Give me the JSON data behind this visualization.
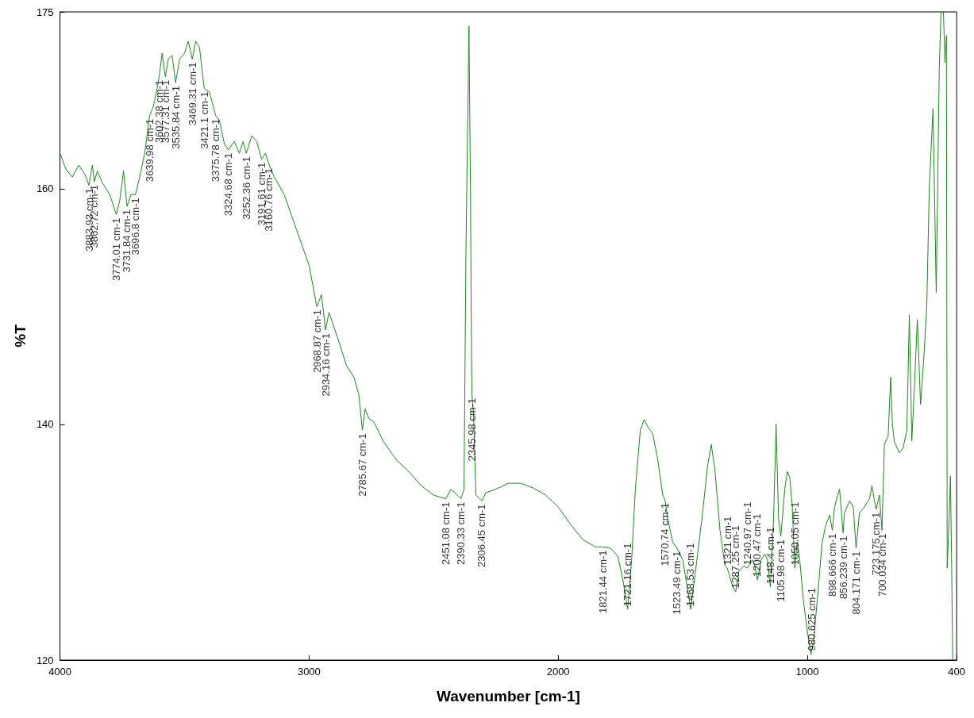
{
  "chart_data": {
    "type": "line",
    "xlabel": "Wavenumber [cm-1]",
    "ylabel": "%T",
    "xlim": [
      4000,
      400
    ],
    "xticks": [
      4000,
      3000,
      2000,
      1000,
      400
    ],
    "ylim": [
      120,
      175
    ],
    "yticks": [
      120,
      140,
      160,
      175
    ],
    "grid": false,
    "marker": "none",
    "line_style": "solid",
    "series": [
      {
        "color": "#1a8a1a",
        "x": [
          4000,
          3975,
          3950,
          3925,
          3900,
          3884,
          3870,
          3862,
          3850,
          3830,
          3800,
          3774,
          3760,
          3745,
          3731,
          3715,
          3697,
          3680,
          3660,
          3640,
          3625,
          3610,
          3602,
          3590,
          3577,
          3565,
          3550,
          3536,
          3520,
          3500,
          3485,
          3469,
          3455,
          3440,
          3421,
          3400,
          3375,
          3360,
          3340,
          3324,
          3300,
          3280,
          3265,
          3252,
          3230,
          3210,
          3191,
          3175,
          3160,
          3140,
          3100,
          3050,
          3000,
          2969,
          2950,
          2934,
          2920,
          2880,
          2850,
          2820,
          2800,
          2786,
          2775,
          2760,
          2740,
          2700,
          2650,
          2600,
          2550,
          2500,
          2470,
          2451,
          2430,
          2400,
          2390,
          2378,
          2370,
          2358,
          2352,
          2348,
          2346,
          2340,
          2330,
          2320,
          2306,
          2290,
          2250,
          2200,
          2150,
          2100,
          2050,
          2000,
          1950,
          1900,
          1850,
          1821,
          1790,
          1760,
          1740,
          1721,
          1705,
          1690,
          1670,
          1655,
          1640,
          1620,
          1600,
          1580,
          1571,
          1560,
          1540,
          1523,
          1500,
          1480,
          1468,
          1455,
          1440,
          1420,
          1400,
          1385,
          1370,
          1350,
          1330,
          1321,
          1300,
          1287,
          1275,
          1255,
          1241,
          1220,
          1210,
          1200,
          1185,
          1170,
          1160,
          1148,
          1135,
          1125,
          1115,
          1106,
          1090,
          1080,
          1070,
          1060,
          1050,
          1040,
          1030,
          1015,
          1000,
          985,
          975,
          960,
          940,
          925,
          910,
          899,
          890,
          880,
          870,
          856,
          850,
          830,
          815,
          804,
          790,
          770,
          750,
          740,
          730,
          723,
          710,
          700,
          690,
          675,
          665,
          658,
          650,
          630,
          615,
          600,
          590,
          580,
          570,
          558,
          545,
          532,
          520,
          510,
          495,
          482,
          470,
          463,
          453,
          447,
          441,
          438,
          430,
          425,
          420,
          416
        ],
        "values": [
          163.0,
          161.6,
          161.0,
          162.0,
          161.2,
          160.3,
          162.0,
          160.6,
          161.5,
          160.5,
          159.5,
          157.8,
          159.0,
          161.5,
          158.5,
          159.5,
          159.5,
          161.0,
          163.0,
          166.2,
          167.0,
          168.5,
          169.5,
          171.5,
          169.5,
          171.0,
          171.3,
          169.0,
          171.0,
          171.5,
          172.5,
          171.0,
          172.5,
          172.0,
          168.5,
          168.2,
          166.2,
          165.8,
          163.8,
          163.3,
          164.0,
          163.0,
          164.0,
          163.0,
          164.5,
          164.0,
          162.5,
          163.0,
          162.0,
          161.0,
          159.5,
          156.5,
          153.5,
          150.0,
          151.0,
          148.0,
          149.5,
          147.0,
          145.0,
          144.0,
          142.5,
          139.5,
          141.3,
          140.5,
          140.2,
          138.5,
          137.0,
          136.0,
          134.8,
          134.0,
          133.8,
          133.7,
          134.5,
          133.9,
          133.7,
          134.5,
          155.0,
          173.8,
          160.0,
          146.0,
          142.5,
          141.0,
          134.0,
          133.8,
          133.5,
          134.2,
          134.5,
          135.0,
          135.0,
          134.6,
          134.0,
          133.0,
          131.5,
          130.2,
          129.6,
          129.6,
          129.5,
          128.8,
          126.8,
          124.3,
          128.5,
          134.5,
          139.5,
          140.4,
          139.8,
          139.2,
          137.0,
          134.0,
          133.6,
          132.0,
          130.0,
          129.5,
          128.5,
          126.0,
          124.3,
          126.5,
          129.0,
          132.5,
          136.5,
          138.3,
          136.0,
          131.0,
          128.0,
          127.8,
          126.3,
          125.8,
          127.5,
          128.0,
          127.8,
          128.5,
          128.0,
          126.8,
          128.5,
          129.0,
          128.5,
          126.2,
          132.0,
          140.0,
          132.0,
          130.5,
          134.5,
          136.0,
          135.5,
          133.0,
          127.8,
          130.0,
          128.5,
          125.0,
          122.5,
          120.5,
          121.5,
          125.0,
          130.0,
          131.5,
          132.3,
          131.0,
          133.0,
          133.8,
          134.5,
          130.8,
          132.5,
          133.5,
          133.0,
          129.5,
          132.5,
          133.0,
          133.7,
          134.8,
          133.5,
          132.8,
          134.0,
          131.0,
          138.3,
          139.0,
          144.0,
          140.0,
          138.5,
          137.6,
          138.0,
          139.5,
          149.3,
          138.6,
          143.0,
          148.9,
          141.7,
          145.6,
          150.0,
          160.0,
          166.8,
          151.2,
          170.0,
          175.0,
          175.0,
          170.7,
          173.0,
          127.8,
          132.0,
          135.6,
          128.0,
          120.0
        ]
      }
    ],
    "annotations": [
      {
        "text": "3883.93 cm-1",
        "x": 3883.93,
        "y": 160.3
      },
      {
        "text": "3862.72 cm-1",
        "x": 3862.72,
        "y": 160.6
      },
      {
        "text": "3774.01 cm-1",
        "x": 3774.01,
        "y": 157.8
      },
      {
        "text": "3731.84 cm-1",
        "x": 3731.84,
        "y": 158.5
      },
      {
        "text": "3696.8 cm-1",
        "x": 3696.8,
        "y": 159.5
      },
      {
        "text": "3639.98 cm-1",
        "x": 3639.98,
        "y": 166.2
      },
      {
        "text": "3602.38 cm-1",
        "x": 3602.38,
        "y": 169.5
      },
      {
        "text": "3577.31 cm-1",
        "x": 3577.31,
        "y": 169.5
      },
      {
        "text": "3535.84 cm-1",
        "x": 3535.84,
        "y": 169.0
      },
      {
        "text": "3469.31 cm-1",
        "x": 3469.31,
        "y": 171.0
      },
      {
        "text": "3421.1 cm-1",
        "x": 3421.1,
        "y": 168.5
      },
      {
        "text": "3375.78 cm-1",
        "x": 3375.78,
        "y": 166.2
      },
      {
        "text": "3324.68 cm-1",
        "x": 3324.68,
        "y": 163.3
      },
      {
        "text": "3252.36 cm-1",
        "x": 3252.36,
        "y": 163.0
      },
      {
        "text": "3191.61 cm-1",
        "x": 3191.61,
        "y": 162.5
      },
      {
        "text": "3160.76 cm-1",
        "x": 3160.76,
        "y": 162.0
      },
      {
        "text": "2968.87 cm-1",
        "x": 2968.87,
        "y": 150.0
      },
      {
        "text": "2934.16 cm-1",
        "x": 2934.16,
        "y": 148.0
      },
      {
        "text": "2785.67 cm-1",
        "x": 2785.67,
        "y": 139.5
      },
      {
        "text": "2451.08 cm-1",
        "x": 2451.08,
        "y": 133.7
      },
      {
        "text": "2390.33 cm-1",
        "x": 2390.33,
        "y": 133.7
      },
      {
        "text": "2345.98 cm-1",
        "x": 2345.98,
        "y": 142.5
      },
      {
        "text": "2306.45 cm-1",
        "x": 2306.45,
        "y": 133.5
      },
      {
        "text": "1821.44 cm-1",
        "x": 1821.44,
        "y": 129.6
      },
      {
        "text": "1721.16 cm-1",
        "x": 1721.16,
        "y": 124.3
      },
      {
        "text": "1570.74 cm-1",
        "x": 1570.74,
        "y": 133.6
      },
      {
        "text": "1523.49 cm-1",
        "x": 1523.49,
        "y": 129.5
      },
      {
        "text": "1468.53 cm-1",
        "x": 1468.53,
        "y": 124.3
      },
      {
        "text": "1321 cm-1",
        "x": 1321,
        "y": 127.8
      },
      {
        "text": "1287.25 cm-1",
        "x": 1287.25,
        "y": 125.8
      },
      {
        "text": "1240.97 cm-1",
        "x": 1240.97,
        "y": 127.8
      },
      {
        "text": "1200.47 cm-1",
        "x": 1200.47,
        "y": 126.8
      },
      {
        "text": "1148.4 cm-1",
        "x": 1148.4,
        "y": 126.2
      },
      {
        "text": "1105.98 cm-1",
        "x": 1105.98,
        "y": 130.5
      },
      {
        "text": "1050.05 cm-1",
        "x": 1050.05,
        "y": 127.8
      },
      {
        "text": "980.625 cm-1",
        "x": 980.625,
        "y": 120.5
      },
      {
        "text": "898.666 cm-1",
        "x": 898.666,
        "y": 131.0
      },
      {
        "text": "856.239 cm-1",
        "x": 856.239,
        "y": 130.8
      },
      {
        "text": "804.171 cm-1",
        "x": 804.171,
        "y": 129.5
      },
      {
        "text": "723.175 cm-1",
        "x": 723.175,
        "y": 132.8
      },
      {
        "text": "700.034 cm-1",
        "x": 700.034,
        "y": 131.0
      }
    ]
  }
}
